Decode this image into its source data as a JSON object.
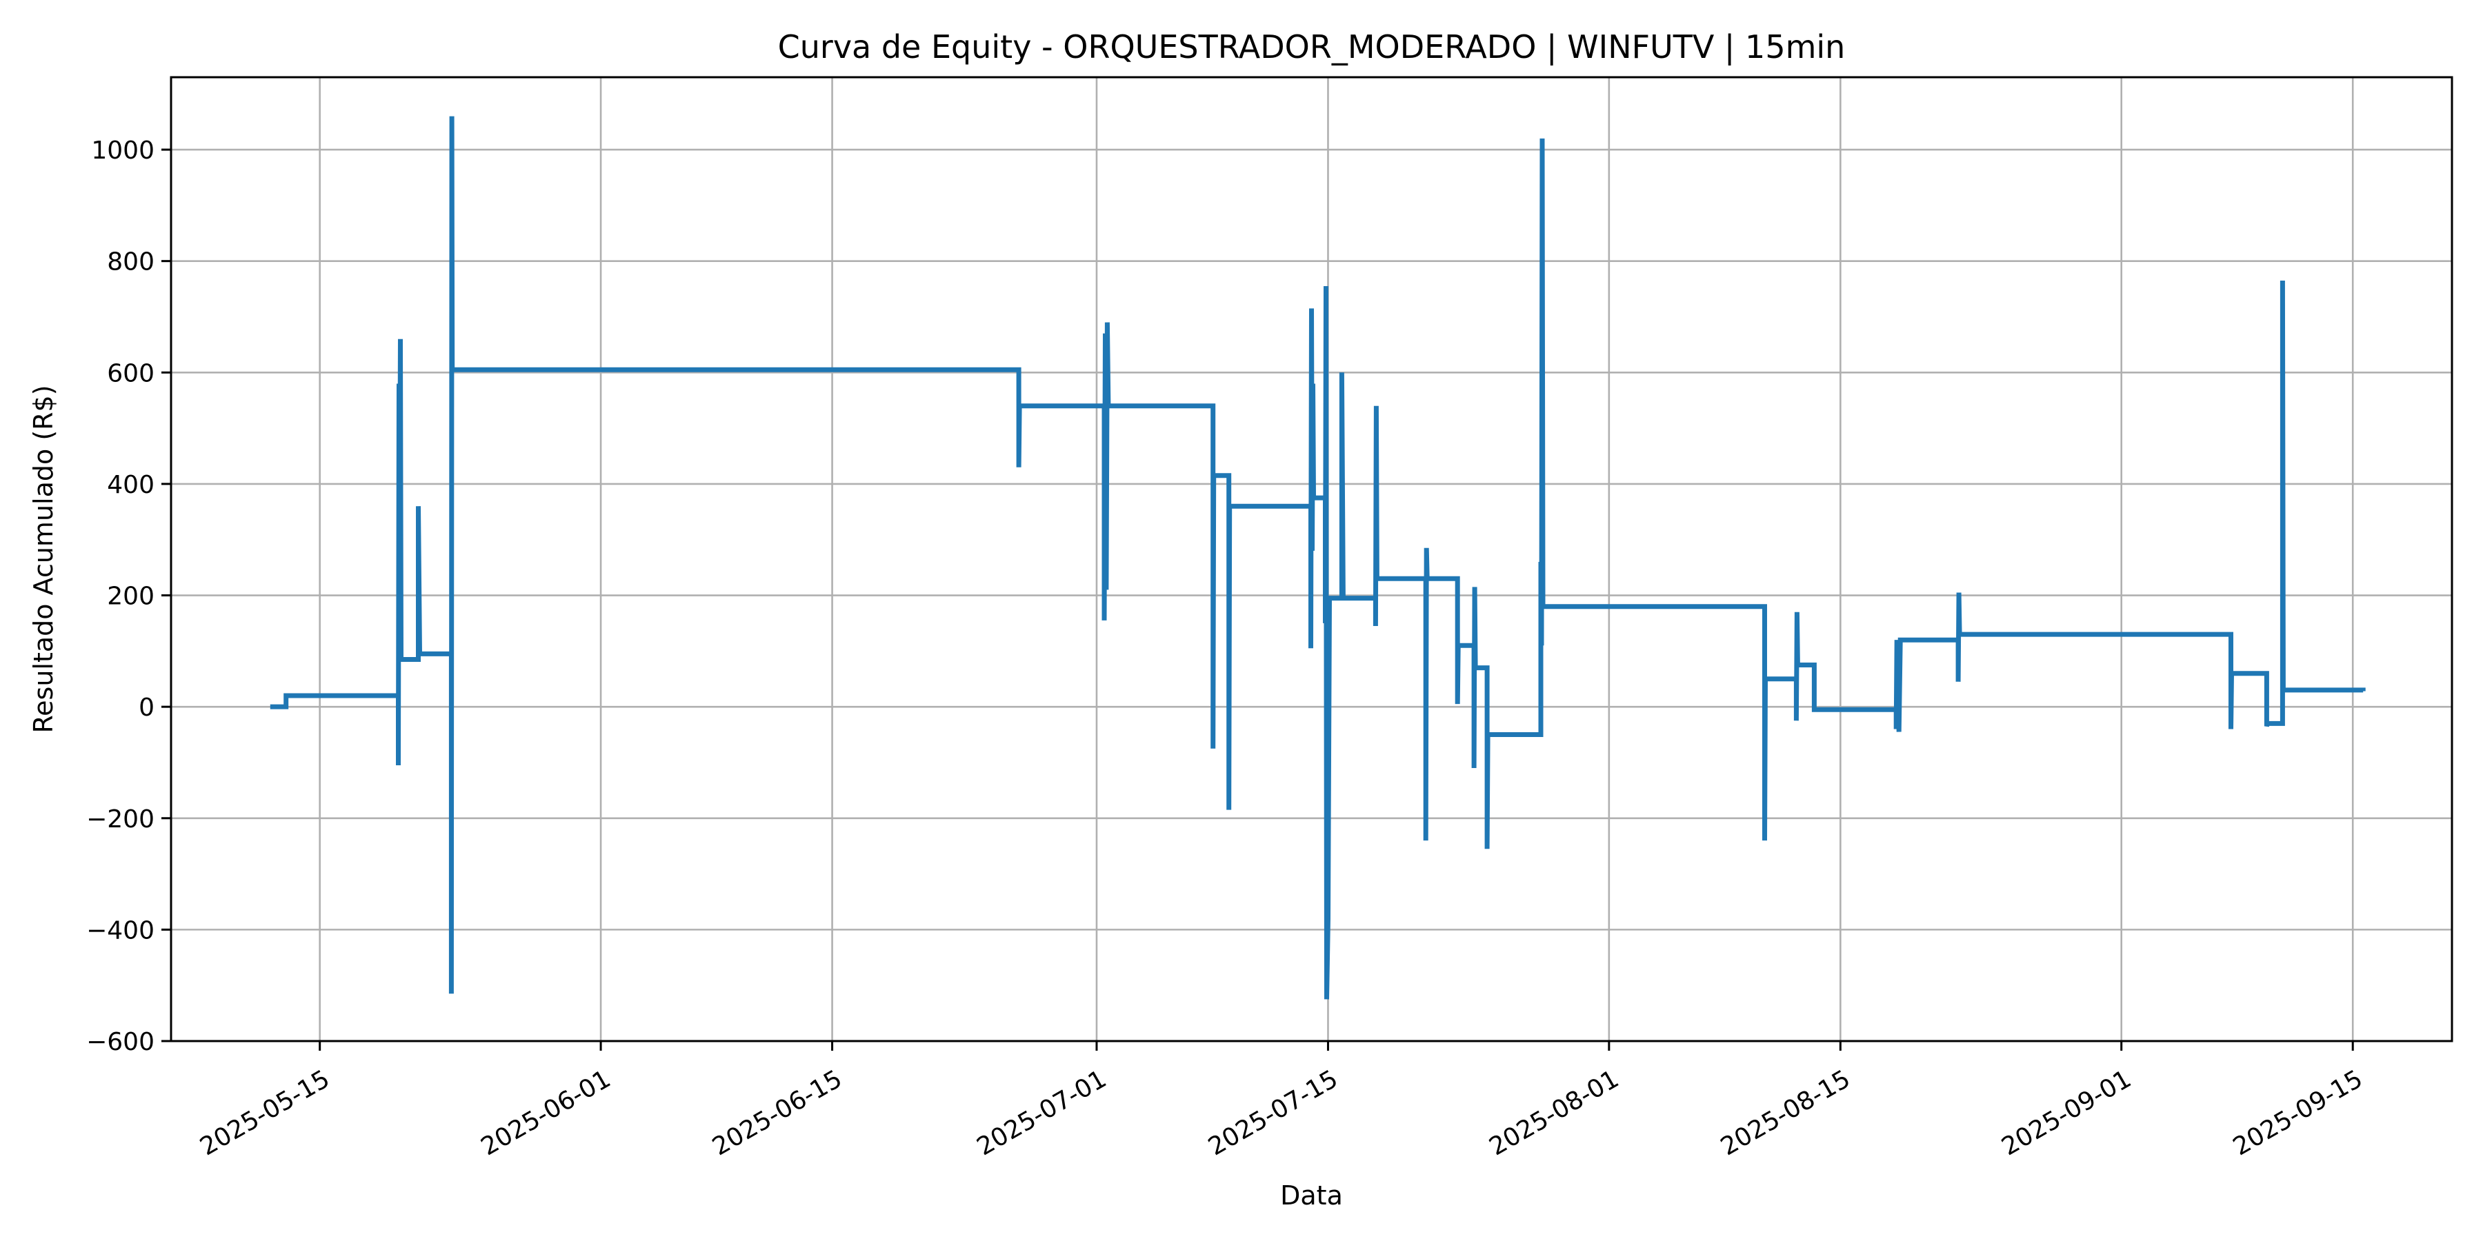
{
  "chart_data": {
    "type": "line",
    "title": "Curva de Equity - ORQUESTRADOR_MODERADO | WINFUTV | 15min",
    "xlabel": "Data",
    "ylabel": "Resultado Acumulado (R$)",
    "xlim": [
      "2025-05-06",
      "2025-09-21"
    ],
    "ylim": [
      -600,
      1130
    ],
    "grid": true,
    "x_ticks": [
      "2025-05-15",
      "2025-06-01",
      "2025-06-15",
      "2025-07-01",
      "2025-07-15",
      "2025-08-01",
      "2025-08-15",
      "2025-09-01",
      "2025-09-15"
    ],
    "y_ticks": [
      -600,
      -400,
      -200,
      0,
      200,
      400,
      600,
      800,
      1000
    ],
    "y_tick_labels": [
      "−600",
      "−400",
      "−200",
      "0",
      "200",
      "400",
      "600",
      "800",
      "1000"
    ],
    "series": [
      {
        "color": "#1f77b4",
        "points": [
          [
            "2025-05-12T00:00",
            0
          ],
          [
            "2025-05-12T23:00",
            0
          ],
          [
            "2025-05-12T23:00",
            20
          ],
          [
            "2025-05-19T18:00",
            20
          ],
          [
            "2025-05-19T18:00",
            -105
          ],
          [
            "2025-05-19T19:00",
            580
          ],
          [
            "2025-05-19T20:00",
            320
          ],
          [
            "2025-05-19T21:00",
            660
          ],
          [
            "2025-05-19T22:00",
            85
          ],
          [
            "2025-05-20T23:00",
            85
          ],
          [
            "2025-05-20T23:00",
            360
          ],
          [
            "2025-05-21T01:00",
            95
          ],
          [
            "2025-05-22T23:00",
            95
          ],
          [
            "2025-05-22T23:00",
            -515
          ],
          [
            "2025-05-22T23:40",
            1060
          ],
          [
            "2025-05-23T00:20",
            605
          ],
          [
            "2025-06-26T07:00",
            605
          ],
          [
            "2025-06-26T07:00",
            430
          ],
          [
            "2025-06-26T08:00",
            540
          ],
          [
            "2025-07-01T11:00",
            540
          ],
          [
            "2025-07-01T11:00",
            155
          ],
          [
            "2025-07-01T12:30",
            670
          ],
          [
            "2025-07-01T14:00",
            210
          ],
          [
            "2025-07-01T15:30",
            690
          ],
          [
            "2025-07-01T17:00",
            540
          ],
          [
            "2025-07-08T01:00",
            540
          ],
          [
            "2025-07-08T01:00",
            -75
          ],
          [
            "2025-07-08T02:00",
            415
          ],
          [
            "2025-07-09T00:00",
            415
          ],
          [
            "2025-07-09T00:00",
            -185
          ],
          [
            "2025-07-09T01:00",
            360
          ],
          [
            "2025-07-13T23:00",
            360
          ],
          [
            "2025-07-13T23:00",
            105
          ],
          [
            "2025-07-14T00:00",
            715
          ],
          [
            "2025-07-14T01:00",
            280
          ],
          [
            "2025-07-14T02:00",
            580
          ],
          [
            "2025-07-14T03:00",
            375
          ],
          [
            "2025-07-14T20:00",
            375
          ],
          [
            "2025-07-14T20:00",
            150
          ],
          [
            "2025-07-14T21:00",
            755
          ],
          [
            "2025-07-14T22:00",
            -525
          ],
          [
            "2025-07-15T00:00",
            -380
          ],
          [
            "2025-07-15T02:00",
            195
          ],
          [
            "2025-07-15T20:00",
            195
          ],
          [
            "2025-07-15T20:00",
            600
          ],
          [
            "2025-07-15T22:00",
            195
          ],
          [
            "2025-07-17T21:00",
            195
          ],
          [
            "2025-07-17T21:00",
            145
          ],
          [
            "2025-07-17T22:00",
            540
          ],
          [
            "2025-07-17T23:00",
            230
          ],
          [
            "2025-07-20T22:00",
            230
          ],
          [
            "2025-07-20T22:00",
            -240
          ],
          [
            "2025-07-20T23:00",
            285
          ],
          [
            "2025-07-21T00:00",
            230
          ],
          [
            "2025-07-22T20:00",
            230
          ],
          [
            "2025-07-22T20:00",
            5
          ],
          [
            "2025-07-22T21:00",
            110
          ],
          [
            "2025-07-23T20:00",
            110
          ],
          [
            "2025-07-23T20:00",
            -110
          ],
          [
            "2025-07-23T21:00",
            215
          ],
          [
            "2025-07-23T22:00",
            70
          ],
          [
            "2025-07-24T15:00",
            70
          ],
          [
            "2025-07-24T15:00",
            -255
          ],
          [
            "2025-07-24T16:00",
            -50
          ],
          [
            "2025-07-27T21:00",
            -50
          ],
          [
            "2025-07-27T21:00",
            260
          ],
          [
            "2025-07-27T22:00",
            110
          ],
          [
            "2025-07-27T23:00",
            1020
          ],
          [
            "2025-07-28T00:00",
            180
          ],
          [
            "2025-08-10T10:00",
            180
          ],
          [
            "2025-08-10T10:00",
            -240
          ],
          [
            "2025-08-10T11:00",
            50
          ],
          [
            "2025-08-12T08:00",
            50
          ],
          [
            "2025-08-12T08:00",
            -25
          ],
          [
            "2025-08-12T09:00",
            170
          ],
          [
            "2025-08-12T10:00",
            75
          ],
          [
            "2025-08-13T10:00",
            75
          ],
          [
            "2025-08-13T10:00",
            -5
          ],
          [
            "2025-08-18T09:00",
            -5
          ],
          [
            "2025-08-18T09:00",
            -40
          ],
          [
            "2025-08-18T10:00",
            120
          ],
          [
            "2025-08-18T13:00",
            -45
          ],
          [
            "2025-08-18T15:00",
            120
          ],
          [
            "2025-08-22T03:00",
            120
          ],
          [
            "2025-08-22T03:00",
            45
          ],
          [
            "2025-08-22T04:00",
            205
          ],
          [
            "2025-08-22T05:00",
            130
          ],
          [
            "2025-09-07T15:00",
            130
          ],
          [
            "2025-09-07T15:00",
            -40
          ],
          [
            "2025-09-07T16:00",
            60
          ],
          [
            "2025-09-09T19:00",
            60
          ],
          [
            "2025-09-09T19:00",
            -35
          ],
          [
            "2025-09-09T20:00",
            -30
          ],
          [
            "2025-09-10T18:00",
            -30
          ],
          [
            "2025-09-10T18:00",
            765
          ],
          [
            "2025-09-10T19:00",
            30
          ],
          [
            "2025-09-15T15:00",
            30
          ],
          [
            "2025-09-15T15:00",
            28
          ]
        ]
      }
    ]
  }
}
